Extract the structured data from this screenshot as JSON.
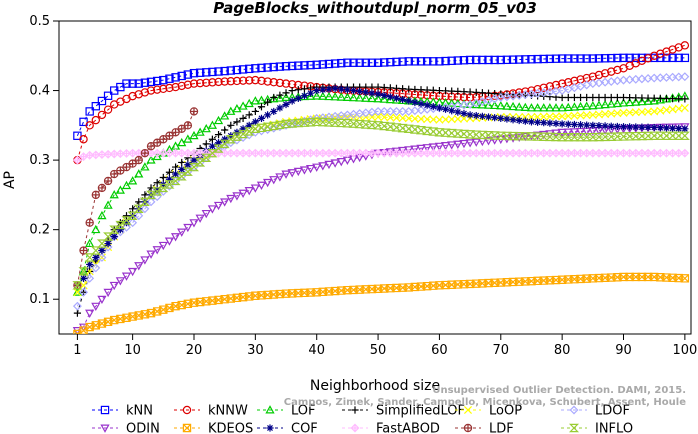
{
  "chart_data": {
    "type": "line",
    "title": "PageBlocks_withoutdupl_norm_05_v03",
    "xlabel": "Neighborhood size",
    "ylabel": "AP",
    "xlim": [
      1,
      100
    ],
    "ylim": [
      0.05,
      0.5
    ],
    "xticks": [
      1,
      10,
      20,
      30,
      40,
      50,
      60,
      70,
      80,
      90,
      100
    ],
    "yticks": [
      0.1,
      0.2,
      0.3,
      0.4,
      0.5
    ],
    "ytick_labels": [
      "0.1",
      "0.2",
      "0.3",
      "0.4",
      "0.5"
    ],
    "grid": false,
    "legend_position": "bottom",
    "credit": "Unsupervised Outlier Detection. DAMI, 2015. Campos, Zimek, Sander, Campello, Micenkova, Schubert, Assent, Houle",
    "series": [
      {
        "name": "kNN",
        "color": "#0000ff",
        "marker": "square",
        "points": [
          [
            1,
            0.335
          ],
          [
            2,
            0.355
          ],
          [
            3,
            0.37
          ],
          [
            5,
            0.385
          ],
          [
            7,
            0.4
          ],
          [
            9,
            0.41
          ],
          [
            11,
            0.41
          ],
          [
            15,
            0.415
          ],
          [
            20,
            0.425
          ],
          [
            25,
            0.428
          ],
          [
            30,
            0.432
          ],
          [
            35,
            0.435
          ],
          [
            40,
            0.437
          ],
          [
            45,
            0.44
          ],
          [
            50,
            0.44
          ],
          [
            55,
            0.442
          ],
          [
            60,
            0.442
          ],
          [
            65,
            0.444
          ],
          [
            70,
            0.444
          ],
          [
            75,
            0.445
          ],
          [
            80,
            0.446
          ],
          [
            85,
            0.446
          ],
          [
            90,
            0.447
          ],
          [
            95,
            0.447
          ],
          [
            100,
            0.447
          ]
        ]
      },
      {
        "name": "kNNW",
        "color": "#dd0000",
        "marker": "circle",
        "points": [
          [
            1,
            0.3
          ],
          [
            2,
            0.33
          ],
          [
            3,
            0.35
          ],
          [
            5,
            0.365
          ],
          [
            7,
            0.38
          ],
          [
            10,
            0.392
          ],
          [
            13,
            0.4
          ],
          [
            17,
            0.405
          ],
          [
            20,
            0.41
          ],
          [
            25,
            0.413
          ],
          [
            30,
            0.415
          ],
          [
            35,
            0.41
          ],
          [
            40,
            0.405
          ],
          [
            45,
            0.4
          ],
          [
            50,
            0.398
          ],
          [
            55,
            0.395
          ],
          [
            60,
            0.392
          ],
          [
            65,
            0.39
          ],
          [
            70,
            0.393
          ],
          [
            75,
            0.4
          ],
          [
            80,
            0.41
          ],
          [
            85,
            0.42
          ],
          [
            90,
            0.432
          ],
          [
            95,
            0.45
          ],
          [
            100,
            0.465
          ]
        ]
      },
      {
        "name": "LOF",
        "color": "#00cc00",
        "marker": "triangle-up",
        "points": [
          [
            1,
            0.11
          ],
          [
            2,
            0.14
          ],
          [
            3,
            0.18
          ],
          [
            5,
            0.22
          ],
          [
            7,
            0.25
          ],
          [
            10,
            0.27
          ],
          [
            13,
            0.3
          ],
          [
            17,
            0.32
          ],
          [
            20,
            0.335
          ],
          [
            23,
            0.35
          ],
          [
            26,
            0.37
          ],
          [
            30,
            0.385
          ],
          [
            35,
            0.39
          ],
          [
            40,
            0.392
          ],
          [
            45,
            0.39
          ],
          [
            50,
            0.388
          ],
          [
            55,
            0.385
          ],
          [
            60,
            0.383
          ],
          [
            65,
            0.38
          ],
          [
            70,
            0.378
          ],
          [
            75,
            0.375
          ],
          [
            80,
            0.375
          ],
          [
            85,
            0.378
          ],
          [
            90,
            0.382
          ],
          [
            95,
            0.385
          ],
          [
            100,
            0.392
          ]
        ]
      },
      {
        "name": "SimplifiedLOF",
        "color": "#000000",
        "marker": "plus",
        "points": [
          [
            1,
            0.08
          ],
          [
            2,
            0.11
          ],
          [
            3,
            0.14
          ],
          [
            5,
            0.17
          ],
          [
            7,
            0.2
          ],
          [
            10,
            0.23
          ],
          [
            13,
            0.26
          ],
          [
            17,
            0.29
          ],
          [
            20,
            0.31
          ],
          [
            23,
            0.33
          ],
          [
            26,
            0.35
          ],
          [
            30,
            0.37
          ],
          [
            33,
            0.39
          ],
          [
            36,
            0.4
          ],
          [
            40,
            0.405
          ],
          [
            45,
            0.405
          ],
          [
            50,
            0.405
          ],
          [
            55,
            0.402
          ],
          [
            60,
            0.4
          ],
          [
            65,
            0.398
          ],
          [
            70,
            0.395
          ],
          [
            75,
            0.393
          ],
          [
            80,
            0.39
          ],
          [
            85,
            0.39
          ],
          [
            90,
            0.39
          ],
          [
            95,
            0.389
          ],
          [
            100,
            0.388
          ]
        ]
      },
      {
        "name": "LoOP",
        "color": "#ffff00",
        "marker": "x",
        "points": [
          [
            1,
            0.11
          ],
          [
            2,
            0.12
          ],
          [
            3,
            0.14
          ],
          [
            5,
            0.16
          ],
          [
            7,
            0.19
          ],
          [
            10,
            0.22
          ],
          [
            13,
            0.25
          ],
          [
            17,
            0.28
          ],
          [
            20,
            0.3
          ],
          [
            23,
            0.31
          ],
          [
            26,
            0.33
          ],
          [
            30,
            0.345
          ],
          [
            35,
            0.355
          ],
          [
            40,
            0.36
          ],
          [
            45,
            0.362
          ],
          [
            50,
            0.362
          ],
          [
            55,
            0.36
          ],
          [
            60,
            0.358
          ],
          [
            65,
            0.36
          ],
          [
            70,
            0.362
          ],
          [
            75,
            0.362
          ],
          [
            80,
            0.363
          ],
          [
            85,
            0.365
          ],
          [
            90,
            0.368
          ],
          [
            95,
            0.37
          ],
          [
            100,
            0.375
          ]
        ]
      },
      {
        "name": "LDOF",
        "color": "#aaaaff",
        "marker": "diamond",
        "points": [
          [
            1,
            0.09
          ],
          [
            2,
            0.11
          ],
          [
            3,
            0.13
          ],
          [
            5,
            0.16
          ],
          [
            7,
            0.19
          ],
          [
            10,
            0.21
          ],
          [
            13,
            0.24
          ],
          [
            17,
            0.27
          ],
          [
            20,
            0.29
          ],
          [
            23,
            0.31
          ],
          [
            26,
            0.325
          ],
          [
            30,
            0.34
          ],
          [
            35,
            0.35
          ],
          [
            40,
            0.36
          ],
          [
            45,
            0.365
          ],
          [
            50,
            0.37
          ],
          [
            55,
            0.37
          ],
          [
            60,
            0.375
          ],
          [
            65,
            0.38
          ],
          [
            70,
            0.39
          ],
          [
            75,
            0.395
          ],
          [
            80,
            0.4
          ],
          [
            85,
            0.41
          ],
          [
            90,
            0.415
          ],
          [
            95,
            0.418
          ],
          [
            100,
            0.42
          ]
        ]
      },
      {
        "name": "ODIN",
        "color": "#9933cc",
        "marker": "triangle-down",
        "points": [
          [
            1,
            0.055
          ],
          [
            2,
            0.06
          ],
          [
            3,
            0.08
          ],
          [
            5,
            0.1
          ],
          [
            7,
            0.12
          ],
          [
            10,
            0.14
          ],
          [
            13,
            0.165
          ],
          [
            17,
            0.19
          ],
          [
            20,
            0.21
          ],
          [
            23,
            0.23
          ],
          [
            26,
            0.245
          ],
          [
            30,
            0.26
          ],
          [
            35,
            0.28
          ],
          [
            40,
            0.29
          ],
          [
            45,
            0.3
          ],
          [
            50,
            0.31
          ],
          [
            55,
            0.315
          ],
          [
            60,
            0.32
          ],
          [
            65,
            0.325
          ],
          [
            70,
            0.33
          ],
          [
            75,
            0.335
          ],
          [
            80,
            0.34
          ],
          [
            85,
            0.342
          ],
          [
            90,
            0.345
          ],
          [
            95,
            0.347
          ],
          [
            100,
            0.348
          ]
        ]
      },
      {
        "name": "KDEOS",
        "color": "#ffaa00",
        "marker": "square-x",
        "points": [
          [
            1,
            0.05
          ],
          [
            2,
            0.055
          ],
          [
            3,
            0.06
          ],
          [
            5,
            0.065
          ],
          [
            7,
            0.07
          ],
          [
            10,
            0.075
          ],
          [
            13,
            0.08
          ],
          [
            17,
            0.09
          ],
          [
            20,
            0.095
          ],
          [
            25,
            0.1
          ],
          [
            30,
            0.105
          ],
          [
            35,
            0.108
          ],
          [
            40,
            0.11
          ],
          [
            45,
            0.113
          ],
          [
            50,
            0.115
          ],
          [
            55,
            0.117
          ],
          [
            60,
            0.12
          ],
          [
            65,
            0.122
          ],
          [
            70,
            0.124
          ],
          [
            75,
            0.126
          ],
          [
            80,
            0.128
          ],
          [
            85,
            0.13
          ],
          [
            90,
            0.132
          ],
          [
            95,
            0.132
          ],
          [
            100,
            0.13
          ]
        ]
      },
      {
        "name": "COF",
        "color": "#000088",
        "marker": "asterisk",
        "points": [
          [
            1,
            0.12
          ],
          [
            2,
            0.13
          ],
          [
            3,
            0.15
          ],
          [
            5,
            0.17
          ],
          [
            7,
            0.19
          ],
          [
            10,
            0.22
          ],
          [
            13,
            0.25
          ],
          [
            17,
            0.28
          ],
          [
            20,
            0.3
          ],
          [
            23,
            0.32
          ],
          [
            26,
            0.335
          ],
          [
            30,
            0.355
          ],
          [
            33,
            0.37
          ],
          [
            36,
            0.385
          ],
          [
            40,
            0.4
          ],
          [
            43,
            0.403
          ],
          [
            46,
            0.4
          ],
          [
            50,
            0.395
          ],
          [
            55,
            0.385
          ],
          [
            60,
            0.375
          ],
          [
            65,
            0.365
          ],
          [
            70,
            0.36
          ],
          [
            75,
            0.355
          ],
          [
            80,
            0.352
          ],
          [
            85,
            0.35
          ],
          [
            90,
            0.348
          ],
          [
            95,
            0.347
          ],
          [
            100,
            0.345
          ]
        ]
      },
      {
        "name": "FastABOD",
        "color": "#ffbbff",
        "marker": "diamond-plus",
        "points": [
          [
            1,
            0.3
          ],
          [
            2,
            0.305
          ],
          [
            3,
            0.307
          ],
          [
            5,
            0.308
          ],
          [
            10,
            0.31
          ],
          [
            20,
            0.31
          ],
          [
            30,
            0.31
          ],
          [
            40,
            0.31
          ],
          [
            50,
            0.31
          ],
          [
            60,
            0.31
          ],
          [
            70,
            0.31
          ],
          [
            80,
            0.31
          ],
          [
            90,
            0.31
          ],
          [
            100,
            0.31
          ]
        ]
      },
      {
        "name": "LDF",
        "color": "#993333",
        "marker": "circle-plus",
        "points": [
          [
            1,
            0.12
          ],
          [
            2,
            0.17
          ],
          [
            3,
            0.21
          ],
          [
            4,
            0.25
          ],
          [
            5,
            0.26
          ],
          [
            7,
            0.28
          ],
          [
            9,
            0.29
          ],
          [
            11,
            0.3
          ],
          [
            13,
            0.32
          ],
          [
            15,
            0.33
          ],
          [
            17,
            0.34
          ],
          [
            19,
            0.35
          ],
          [
            20,
            0.37
          ]
        ]
      },
      {
        "name": "INFLO",
        "color": "#99cc33",
        "marker": "hourglass",
        "points": [
          [
            1,
            0.12
          ],
          [
            2,
            0.14
          ],
          [
            3,
            0.16
          ],
          [
            5,
            0.18
          ],
          [
            7,
            0.2
          ],
          [
            10,
            0.22
          ],
          [
            13,
            0.25
          ],
          [
            17,
            0.27
          ],
          [
            20,
            0.29
          ],
          [
            23,
            0.31
          ],
          [
            26,
            0.33
          ],
          [
            30,
            0.345
          ],
          [
            35,
            0.352
          ],
          [
            40,
            0.355
          ],
          [
            45,
            0.353
          ],
          [
            50,
            0.35
          ],
          [
            55,
            0.345
          ],
          [
            60,
            0.34
          ],
          [
            65,
            0.337
          ],
          [
            70,
            0.335
          ],
          [
            75,
            0.334
          ],
          [
            80,
            0.333
          ],
          [
            85,
            0.333
          ],
          [
            90,
            0.334
          ],
          [
            95,
            0.335
          ],
          [
            100,
            0.335
          ]
        ]
      }
    ]
  }
}
